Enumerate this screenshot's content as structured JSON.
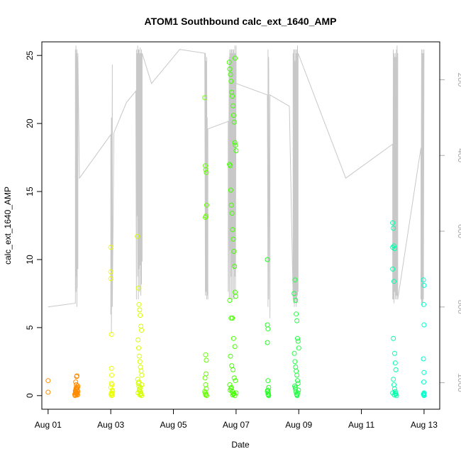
{
  "chart_data": {
    "type": "scatter",
    "title": "ATOM1 Southbound calc_ext_1640_AMP",
    "xlabel": "Date",
    "ylabel": "calc_ext_1640_AMP",
    "x_ticks": [
      "Aug 01",
      "Aug 03",
      "Aug 05",
      "Aug 07",
      "Aug 09",
      "Aug 11",
      "Aug 13"
    ],
    "y_ticks": [
      "0",
      "5",
      "10",
      "15",
      "20",
      "25"
    ],
    "y_right_ticks": [
      "200",
      "400",
      "600",
      "800",
      "1000"
    ],
    "xlim_days": [
      0.8,
      13.5
    ],
    "ylim": [
      -1,
      26
    ],
    "y_right_lim_reversed": [
      100,
      1070
    ],
    "grid": false,
    "legend": "none",
    "right_axis_color": "#aaaaaa",
    "line_color": "#c8c8c8",
    "depth_series": {
      "name": "",
      "x_days": [
        1.0,
        1.87,
        1.87,
        1.88,
        1.88,
        1.89,
        1.89,
        1.9,
        1.9,
        1.92,
        1.92,
        1.93,
        1.93,
        1.95,
        1.95,
        2.0,
        3.0,
        3.0,
        3.02,
        3.02,
        3.05,
        3.05,
        3.1,
        3.5,
        3.8,
        3.82,
        3.82,
        3.84,
        3.84,
        3.86,
        3.86,
        3.88,
        3.88,
        3.9,
        3.9,
        3.92,
        3.92,
        3.94,
        3.94,
        3.96,
        3.96,
        3.98,
        3.98,
        4.0,
        4.0,
        4.3,
        5.2,
        6.0,
        6.02,
        6.02,
        6.04,
        6.04,
        6.06,
        6.06,
        6.08,
        6.08,
        6.1,
        6.1,
        6.75,
        6.75,
        6.78,
        6.78,
        6.8,
        6.8,
        6.82,
        6.82,
        6.84,
        6.84,
        6.86,
        6.86,
        6.88,
        6.88,
        6.9,
        6.9,
        6.92,
        6.92,
        6.94,
        6.94,
        6.96,
        6.96,
        6.98,
        6.98,
        7.0,
        7.0,
        8.0,
        8.02,
        8.02,
        8.04,
        8.04,
        8.08,
        8.08,
        8.7,
        8.82,
        8.82,
        8.84,
        8.84,
        8.86,
        8.86,
        8.88,
        8.88,
        8.9,
        8.9,
        8.92,
        8.92,
        8.94,
        8.94,
        8.96,
        8.96,
        8.98,
        8.98,
        10.5,
        12.0,
        12.0,
        12.02,
        12.02,
        12.04,
        12.04,
        12.06,
        12.06,
        12.08,
        12.08,
        12.1,
        12.1,
        12.12,
        12.12,
        12.14,
        12.14,
        12.16,
        12.16,
        12.9,
        12.9,
        12.92,
        12.92,
        12.94,
        12.94,
        12.96,
        12.96,
        12.98,
        12.98,
        13.0
      ],
      "depth": [
        800,
        790,
        120,
        610,
        140,
        760,
        110,
        720,
        130,
        800,
        120,
        750,
        140,
        700,
        130,
        460,
        345,
        820,
        300,
        870,
        160,
        800,
        340,
        260,
        230,
        780,
        120,
        560,
        130,
        720,
        110,
        780,
        120,
        700,
        120,
        760,
        130,
        690,
        115,
        770,
        130,
        740,
        120,
        680,
        130,
        210,
        120,
        130,
        770,
        130,
        760,
        150,
        780,
        140,
        770,
        300,
        780,
        330,
        310,
        760,
        140,
        780,
        120,
        650,
        130,
        780,
        120,
        720,
        120,
        780,
        130,
        690,
        120,
        780,
        120,
        700,
        130,
        780,
        110,
        720,
        130,
        770,
        110,
        210,
        240,
        800,
        120,
        780,
        140,
        830,
        240,
        270,
        780,
        130,
        790,
        120,
        800,
        120,
        790,
        150,
        780,
        120,
        800,
        130,
        790,
        120,
        770,
        110,
        760,
        130,
        460,
        370,
        780,
        120,
        780,
        130,
        790,
        140,
        760,
        130,
        780,
        140,
        770,
        120,
        780,
        110,
        770,
        130,
        780,
        380,
        780,
        120,
        790,
        130,
        800,
        120,
        790,
        130,
        780,
        120,
        380
      ]
    },
    "series": [
      {
        "name": "",
        "color": "#ff8c00",
        "x": [
          1.0,
          1.0,
          1.85,
          1.87,
          1.88,
          1.89,
          1.9,
          1.91,
          1.92,
          1.93,
          1.94,
          1.95,
          1.86,
          1.88,
          1.9,
          1.92,
          1.94,
          1.87,
          1.89,
          1.91,
          1.93,
          1.95,
          1.88,
          1.9,
          1.92
        ],
        "y": [
          1.1,
          0.25,
          0.1,
          0.2,
          0.3,
          0.5,
          0.8,
          1.4,
          1.45,
          0.4,
          0.6,
          0.7,
          0.0,
          0.05,
          0.15,
          0.1,
          0.05,
          0.35,
          0.45,
          0.25,
          0.2,
          0.3,
          1.0,
          0.6,
          0.55
        ]
      },
      {
        "name": "",
        "color": "#eaff00",
        "x": [
          3.0,
          3.0,
          3.0,
          3.02,
          3.02,
          3.03,
          3.04,
          3.05,
          3.01,
          3.03,
          3.02,
          3.05,
          3.04,
          3.06,
          3.0,
          3.02
        ],
        "y": [
          10.9,
          9.1,
          8.6,
          4.5,
          2.0,
          1.5,
          0.8,
          0.4,
          0.1,
          0.0,
          0.2,
          0.05,
          0.15,
          0.3,
          0.6,
          0.9
        ]
      },
      {
        "name": "",
        "color": "#d4ff00",
        "x": [
          3.85,
          3.88,
          3.9,
          3.92,
          3.94,
          3.96,
          3.98,
          3.87,
          3.89,
          3.91,
          3.93,
          3.95,
          3.97,
          3.99,
          3.86,
          3.88,
          3.9,
          3.92,
          3.94,
          3.96,
          3.98,
          3.87,
          3.91,
          3.95,
          3.99,
          3.9,
          3.93,
          3.97
        ],
        "y": [
          11.7,
          7.9,
          6.7,
          6.3,
          5.9,
          5.1,
          4.8,
          4.1,
          3.5,
          2.9,
          2.5,
          2.1,
          1.8,
          1.5,
          1.2,
          0.9,
          0.7,
          0.5,
          0.3,
          0.1,
          0.0,
          0.2,
          0.4,
          0.6,
          0.8,
          1.0,
          0.05,
          0.15
        ]
      },
      {
        "name": "",
        "color": "#66ff00",
        "x": [
          6.0,
          6.02,
          6.03,
          6.05,
          6.06,
          6.04,
          6.02,
          6.03,
          6.05,
          6.04,
          6.01,
          6.03,
          6.05,
          6.02,
          6.04,
          6.06,
          6.0,
          6.03
        ],
        "y": [
          21.9,
          16.9,
          16.6,
          16.4,
          14.0,
          13.2,
          13.1,
          3.0,
          2.6,
          1.6,
          1.3,
          0.8,
          0.5,
          0.2,
          0.1,
          0.0,
          0.3,
          0.05
        ]
      },
      {
        "name": "",
        "color": "#44ff00",
        "x": [
          6.78,
          6.8,
          6.82,
          6.84,
          6.86,
          6.88,
          6.9,
          6.92,
          6.94,
          6.96,
          6.98,
          7.0,
          6.79,
          6.81,
          6.83,
          6.85,
          6.87,
          6.89,
          6.91,
          6.93,
          6.95,
          6.97,
          6.99,
          6.8,
          6.84,
          6.88,
          6.92,
          6.96,
          6.82,
          6.86,
          6.9,
          6.94,
          6.98,
          6.8,
          6.84,
          6.88,
          6.92,
          6.96,
          7.0,
          6.81,
          6.85,
          6.89,
          6.93,
          6.97
        ],
        "y": [
          24.5,
          24.0,
          23.6,
          23.1,
          22.3,
          22.0,
          21.3,
          20.6,
          20.1,
          18.6,
          18.4,
          18.0,
          17.0,
          16.9,
          15.1,
          14.0,
          13.4,
          12.2,
          11.5,
          10.6,
          9.5,
          7.6,
          7.3,
          7.0,
          5.7,
          5.7,
          4.2,
          3.6,
          2.9,
          2.2,
          1.9,
          1.3,
          1.1,
          0.8,
          0.5,
          0.3,
          0.1,
          0.0,
          0.2,
          0.4,
          0.6,
          0.05,
          0.15,
          24.8
        ]
      },
      {
        "name": "",
        "color": "#22ff22",
        "x": [
          8.0,
          8.0,
          8.02,
          8.0,
          8.02,
          8.04,
          8.01,
          8.03,
          8.02,
          8.04,
          8.0,
          8.03
        ],
        "y": [
          10.0,
          5.2,
          4.9,
          3.9,
          1.1,
          0.6,
          0.4,
          0.2,
          0.1,
          0.0,
          0.3,
          0.05
        ]
      },
      {
        "name": "",
        "color": "#22ff44",
        "x": [
          8.85,
          8.88,
          8.9,
          8.92,
          8.94,
          8.96,
          8.98,
          9.0,
          8.86,
          8.88,
          8.9,
          8.92,
          8.94,
          8.96,
          8.98,
          8.87,
          8.89,
          8.91,
          8.93,
          8.95,
          8.97,
          8.99,
          8.9,
          8.94
        ],
        "y": [
          7.5,
          8.5,
          7.0,
          6.0,
          5.5,
          4.2,
          4.0,
          3.5,
          3.1,
          2.5,
          2.1,
          1.8,
          1.5,
          1.1,
          0.9,
          0.7,
          0.5,
          0.3,
          0.1,
          0.0,
          0.2,
          0.4,
          0.6,
          0.05
        ]
      },
      {
        "name": "",
        "color": "#00ffaa",
        "x": [
          12.0,
          12.02,
          12.0,
          12.04,
          12.06,
          12.0,
          12.04,
          12.02,
          12.06,
          12.08,
          12.1,
          12.02,
          12.04,
          12.06,
          12.08,
          12.1,
          12.12,
          12.0,
          12.05,
          12.09
        ],
        "y": [
          12.7,
          12.3,
          10.9,
          11.0,
          10.8,
          9.3,
          8.4,
          4.2,
          3.1,
          2.4,
          1.9,
          1.2,
          0.8,
          0.5,
          0.3,
          0.1,
          0.0,
          0.2,
          0.05,
          0.15
        ]
      },
      {
        "name": "",
        "color": "#00ffcc",
        "x": [
          12.98,
          13.0,
          12.99,
          13.0,
          12.98,
          13.0,
          12.99,
          13.0,
          12.98,
          13.0,
          12.99,
          13.0
        ],
        "y": [
          8.5,
          8.1,
          6.7,
          5.2,
          2.7,
          1.7,
          1.0,
          0.2,
          0.1,
          0.0,
          0.05,
          0.15
        ]
      }
    ]
  }
}
